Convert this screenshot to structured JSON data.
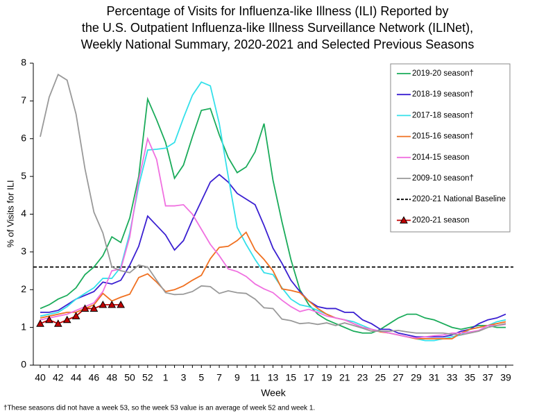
{
  "chart_data": {
    "type": "line",
    "title": [
      "Percentage of Visits for Influenza-like Illness (ILI) Reported by",
      "the U.S. Outpatient Influenza-like Illness Surveillance Network (ILINet),",
      "Weekly National Summary, 2020-2021 and Selected Previous Seasons"
    ],
    "x_label": "Week",
    "y_label": "% of Visits for ILI",
    "footnote": "†These seasons did not have a week 53, so the week 53 value is an average of week 52 and week 1.",
    "categories": [
      "40",
      null,
      "42",
      null,
      "44",
      null,
      "46",
      null,
      "48",
      null,
      "50",
      null,
      "52",
      null,
      "1",
      null,
      "3",
      null,
      "5",
      null,
      "7",
      null,
      "9",
      null,
      "11",
      null,
      "13",
      null,
      "15",
      null,
      "17",
      null,
      "19",
      null,
      "21",
      null,
      "23",
      null,
      "25",
      null,
      "27",
      null,
      "29",
      null,
      "31",
      null,
      "33",
      null,
      "35",
      null,
      "37",
      null,
      "39"
    ],
    "ylim": [
      0,
      8
    ],
    "yticks": [
      0,
      1,
      2,
      3,
      4,
      5,
      6,
      7,
      8
    ],
    "legend": "top-right",
    "series": [
      {
        "name": "2019-20 season†",
        "color": "#1aab5a",
        "values": [
          1.5,
          1.6,
          1.75,
          1.85,
          2.05,
          2.4,
          2.6,
          2.9,
          3.4,
          3.25,
          3.9,
          5.0,
          7.05,
          6.5,
          5.9,
          4.95,
          5.3,
          6.05,
          6.75,
          6.8,
          6.1,
          5.5,
          5.1,
          5.25,
          5.65,
          6.4,
          4.9,
          3.8,
          2.8,
          2.0,
          1.6,
          1.35,
          1.2,
          1.1,
          1.0,
          0.9,
          0.85,
          0.85,
          0.95,
          1.1,
          1.25,
          1.35,
          1.35,
          1.25,
          1.2,
          1.1,
          1.0,
          0.95,
          1.0,
          1.05,
          1.05,
          1.0,
          1.0
        ]
      },
      {
        "name": "2018-19 season†",
        "color": "#3a1fd1",
        "values": [
          1.4,
          1.4,
          1.45,
          1.6,
          1.75,
          1.85,
          1.95,
          2.2,
          2.15,
          2.25,
          2.65,
          3.15,
          3.95,
          3.7,
          3.45,
          3.05,
          3.3,
          3.85,
          4.35,
          4.85,
          5.05,
          4.85,
          4.55,
          4.4,
          4.25,
          3.7,
          3.1,
          2.7,
          2.25,
          1.95,
          1.7,
          1.55,
          1.5,
          1.5,
          1.4,
          1.4,
          1.2,
          1.1,
          0.95,
          0.95,
          0.85,
          0.8,
          0.75,
          0.75,
          0.75,
          0.75,
          0.8,
          0.9,
          0.95,
          1.1,
          1.2,
          1.25,
          1.35
        ]
      },
      {
        "name": "2017-18 season†",
        "color": "#33e0ea",
        "values": [
          1.3,
          1.35,
          1.4,
          1.55,
          1.75,
          1.9,
          2.05,
          2.3,
          2.3,
          2.6,
          3.5,
          4.75,
          5.7,
          5.72,
          5.75,
          5.9,
          6.55,
          7.15,
          7.5,
          7.4,
          6.4,
          5.0,
          3.65,
          3.2,
          2.8,
          2.45,
          2.4,
          2.05,
          1.75,
          1.6,
          1.55,
          1.45,
          1.35,
          1.25,
          1.2,
          1.15,
          1.05,
          0.95,
          0.9,
          0.85,
          0.8,
          0.75,
          0.7,
          0.65,
          0.65,
          0.7,
          0.75,
          0.8,
          0.95,
          1.0,
          1.05,
          1.15,
          1.2
        ]
      },
      {
        "name": "2015-16 season†",
        "color": "#f07020",
        "values": [
          1.25,
          1.3,
          1.35,
          1.4,
          1.4,
          1.5,
          1.6,
          1.9,
          1.7,
          1.8,
          1.88,
          2.32,
          2.42,
          2.2,
          1.95,
          2.0,
          2.1,
          2.25,
          2.38,
          2.82,
          3.12,
          3.15,
          3.3,
          3.52,
          3.05,
          2.8,
          2.5,
          2.02,
          1.98,
          1.92,
          1.7,
          1.5,
          1.35,
          1.25,
          1.2,
          1.1,
          1.0,
          0.95,
          0.88,
          0.85,
          0.8,
          0.75,
          0.7,
          0.7,
          0.7,
          0.7,
          0.7,
          0.85,
          0.95,
          1.0,
          1.05,
          1.1,
          1.15
        ]
      },
      {
        "name": "2014-15 season",
        "color": "#f070e0",
        "values": [
          1.2,
          1.25,
          1.3,
          1.35,
          1.45,
          1.55,
          1.65,
          1.95,
          2.5,
          2.55,
          3.4,
          4.9,
          6.0,
          5.45,
          4.22,
          4.22,
          4.25,
          4.0,
          3.6,
          3.2,
          2.9,
          2.55,
          2.48,
          2.35,
          2.15,
          2.02,
          1.92,
          1.72,
          1.55,
          1.42,
          1.48,
          1.4,
          1.3,
          1.25,
          1.2,
          1.1,
          1.0,
          0.95,
          0.9,
          0.85,
          0.8,
          0.75,
          0.72,
          0.75,
          0.78,
          0.8,
          0.85,
          0.85,
          0.88,
          0.92,
          1.05,
          1.05,
          1.08
        ]
      },
      {
        "name": "2009-10 season†",
        "color": "#999999",
        "values": [
          6.05,
          7.1,
          7.7,
          7.55,
          6.65,
          5.2,
          4.05,
          3.5,
          2.6,
          2.5,
          2.45,
          2.65,
          2.6,
          2.25,
          1.92,
          1.87,
          1.88,
          1.95,
          2.1,
          2.08,
          1.9,
          1.97,
          1.92,
          1.9,
          1.75,
          1.52,
          1.5,
          1.22,
          1.18,
          1.1,
          1.12,
          1.08,
          1.12,
          1.05,
          1.12,
          1.05,
          0.98,
          0.9,
          0.9,
          0.9,
          0.92,
          0.88,
          0.85,
          0.85,
          0.85,
          0.85,
          0.82,
          0.8,
          0.85,
          0.9,
          1.0,
          1.05,
          1.1
        ]
      },
      {
        "name": "2020-21 season",
        "color": "#c00000",
        "marker": "triangle",
        "values": [
          1.1,
          1.2,
          1.1,
          1.2,
          1.3,
          1.5,
          1.5,
          1.6,
          1.6,
          1.6,
          null,
          null,
          null,
          null,
          null,
          null,
          null,
          null,
          null,
          null,
          null,
          null,
          null,
          null,
          null,
          null,
          null,
          null,
          null,
          null,
          null,
          null,
          null,
          null,
          null,
          null,
          null,
          null,
          null,
          null,
          null,
          null,
          null,
          null,
          null,
          null,
          null,
          null,
          null,
          null,
          null,
          null,
          null
        ]
      }
    ],
    "baseline": {
      "name": "2020-21 National Baseline",
      "value": 2.6,
      "color": "#000000"
    }
  }
}
